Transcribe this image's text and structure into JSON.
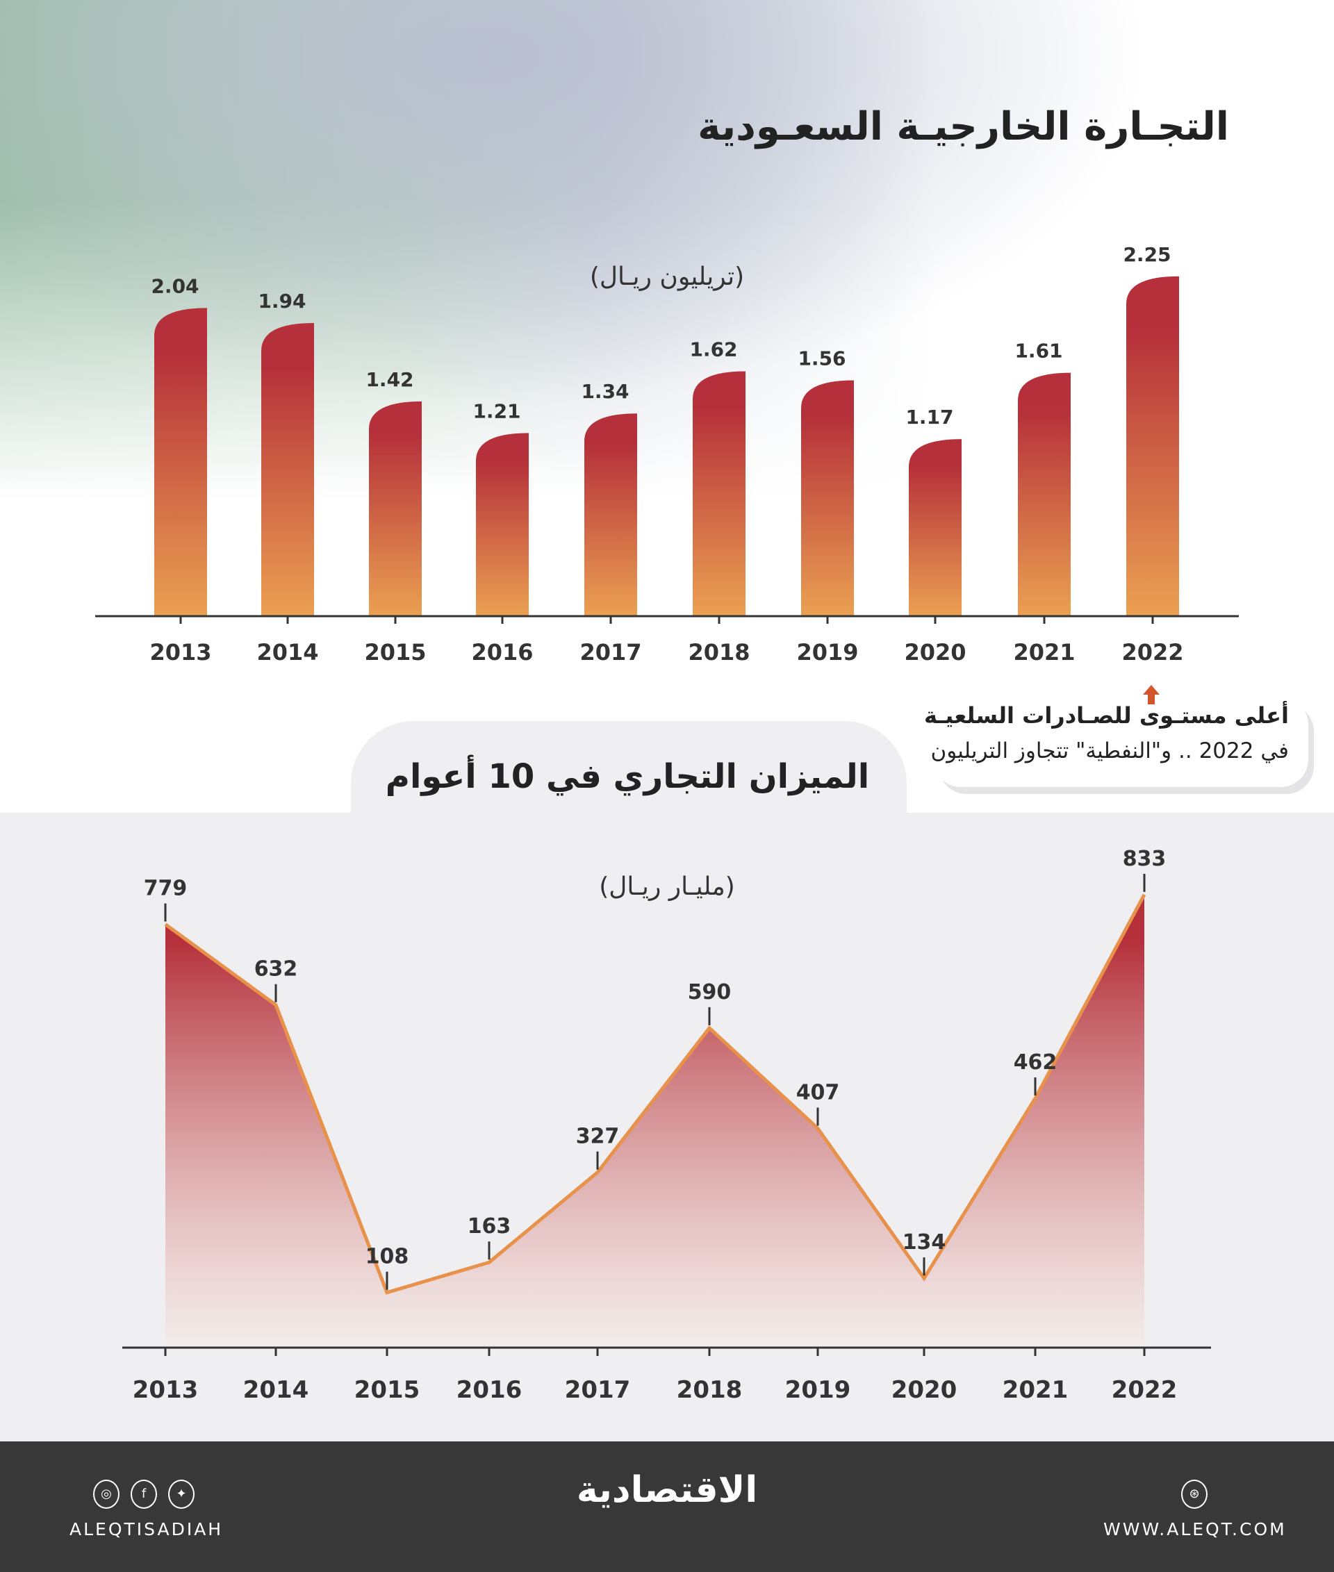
{
  "header": {
    "title": "التجـارة الخارجيـة السعـودية"
  },
  "chart_data": [
    {
      "type": "bar",
      "subtitle": "(تريليون ريـال)",
      "categories": [
        "2013",
        "2014",
        "2015",
        "2016",
        "2017",
        "2018",
        "2019",
        "2020",
        "2021",
        "2022"
      ],
      "values": [
        2.04,
        1.94,
        1.42,
        1.21,
        1.34,
        1.62,
        1.56,
        1.17,
        1.61,
        2.25
      ],
      "value_labels": [
        "2.04",
        "1.94",
        "1.42",
        "1.21",
        "1.34",
        "1.62",
        "1.56",
        "1.17",
        "1.61",
        "2.25"
      ],
      "ylim": [
        0,
        2.25
      ],
      "grid": false,
      "colors": {
        "top": "#b5303a",
        "bottom": "#eba052"
      }
    },
    {
      "type": "area",
      "title": "الميزان التجاري في 10 أعوام",
      "subtitle": "(مليـار ريـال)",
      "categories": [
        "2013",
        "2014",
        "2015",
        "2016",
        "2017",
        "2018",
        "2019",
        "2020",
        "2021",
        "2022"
      ],
      "values": [
        779,
        632,
        108,
        163,
        327,
        590,
        407,
        134,
        462,
        833
      ],
      "value_labels": [
        "779",
        "632",
        "108",
        "163",
        "327",
        "590",
        "407",
        "134",
        "462",
        "833"
      ],
      "grid": false,
      "colors": {
        "line": "#e8914a",
        "fill_top": "#b5303a",
        "fill_bottom": "#f5e6e0"
      }
    }
  ],
  "callout": {
    "line1": "أعلى مستـوى للصـادرات السلعيـة",
    "line2": "في 2022  .. و\"النفطية\" تتجاوز التريليون",
    "arrow_color": "#d2552b"
  },
  "footer": {
    "handle": "ALEQTISADIAH",
    "logo": "الاقتصادية",
    "website": "WWW.ALEQT.COM",
    "icons": [
      "instagram-icon",
      "facebook-icon",
      "twitter-icon",
      "globe-icon"
    ]
  }
}
